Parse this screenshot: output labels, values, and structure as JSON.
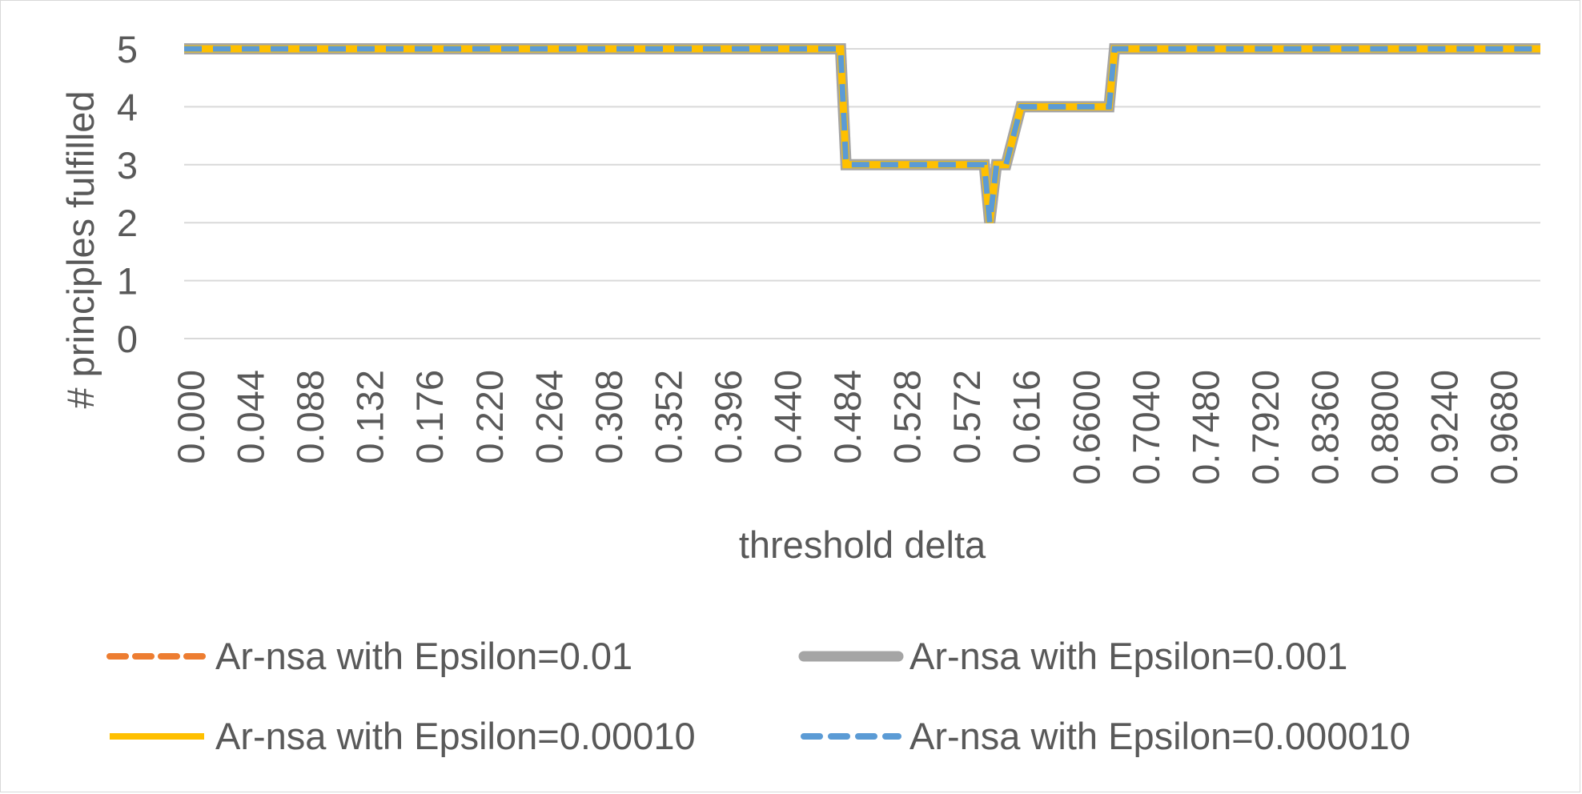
{
  "chart_data": {
    "type": "line",
    "title": "",
    "xlabel": "threshold delta",
    "ylabel": "# principles fulfilled",
    "ylim": [
      0,
      5
    ],
    "y_ticks": [
      "0",
      "1",
      "2",
      "3",
      "4",
      "5"
    ],
    "x_tick_labels": [
      "0.000",
      "0.044",
      "0.088",
      "0.132",
      "0.176",
      "0.220",
      "0.264",
      "0.308",
      "0.352",
      "0.396",
      "0.440",
      "0.484",
      "0.528",
      "0.572",
      "0.616",
      "0.6600",
      "0.7040",
      "0.7480",
      "0.7920",
      "0.8360",
      "0.8800",
      "0.9240",
      "0.9680"
    ],
    "grid": true,
    "legend_position": "bottom",
    "x": [
      0.0,
      0.484,
      0.488,
      0.59,
      0.594,
      0.599,
      0.606,
      0.617,
      0.619,
      0.682,
      0.686,
      1.0
    ],
    "series": [
      {
        "name": "Ar-nsa with Epsilon=0.01",
        "color": "#ED7D31",
        "style": "dashed",
        "values": [
          5,
          5,
          3,
          3,
          2,
          3,
          3,
          4,
          4,
          4,
          5,
          5
        ]
      },
      {
        "name": "Ar-nsa with Epsilon=0.001",
        "color": "#A5A5A5",
        "style": "solid",
        "values": [
          5,
          5,
          3,
          3,
          2,
          3,
          3,
          4,
          4,
          4,
          5,
          5
        ]
      },
      {
        "name": "Ar-nsa with Epsilon=0.00010",
        "color": "#FFC000",
        "style": "solid",
        "values": [
          5,
          5,
          3,
          3,
          2,
          3,
          3,
          4,
          4,
          4,
          5,
          5
        ]
      },
      {
        "name": "Ar-nsa with Epsilon=0.000010",
        "color": "#5B9BD5",
        "style": "dashed",
        "values": [
          5,
          5,
          3,
          3,
          2,
          3,
          3,
          4,
          4,
          4,
          5,
          5
        ]
      }
    ]
  }
}
